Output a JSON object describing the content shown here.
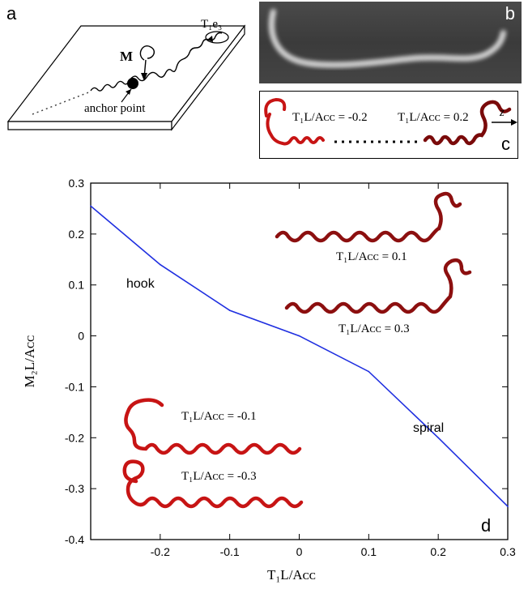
{
  "panels": {
    "a": {
      "letter": "a",
      "vector_M": "M",
      "twist": "T₁e₃",
      "anchor": "anchor point"
    },
    "b": {
      "letter": "b"
    },
    "c": {
      "letter": "c",
      "left_label": "T₁L/Aᴄᴄ = -0.2",
      "right_label": "T₁L/Aᴄᴄ = 0.2",
      "axis": "z"
    },
    "d": {
      "letter": "d"
    }
  },
  "chart_data": {
    "type": "line",
    "xlabel": "T₁L/Aᴄᴄ",
    "ylabel": "M₂L/Aᴄᴄ",
    "xlim": [
      -0.3,
      0.3
    ],
    "ylim": [
      -0.4,
      0.3
    ],
    "xticks": [
      "-0.2",
      "-0.1",
      "0",
      "0.1",
      "0.2",
      "0.3"
    ],
    "yticks": [
      "0.3",
      "0.2",
      "0.1",
      "0",
      "-0.1",
      "-0.2",
      "-0.3",
      "-0.4"
    ],
    "series": [
      {
        "color": "#1f2fe0",
        "x": [
          -0.3,
          -0.2,
          -0.1,
          0.0,
          0.1,
          0.2,
          0.3
        ],
        "y": [
          0.255,
          0.14,
          0.05,
          0.0,
          -0.07,
          -0.2,
          -0.335
        ]
      }
    ],
    "annotations": {
      "hook": "hook",
      "spiral": "spiral",
      "inset_p01": "T₁L/Aᴄᴄ = 0.1",
      "inset_p03": "T₁L/Aᴄᴄ = 0.3",
      "inset_m01": "T₁L/Aᴄᴄ = -0.1",
      "inset_m03": "T₁L/Aᴄᴄ = -0.3"
    }
  }
}
